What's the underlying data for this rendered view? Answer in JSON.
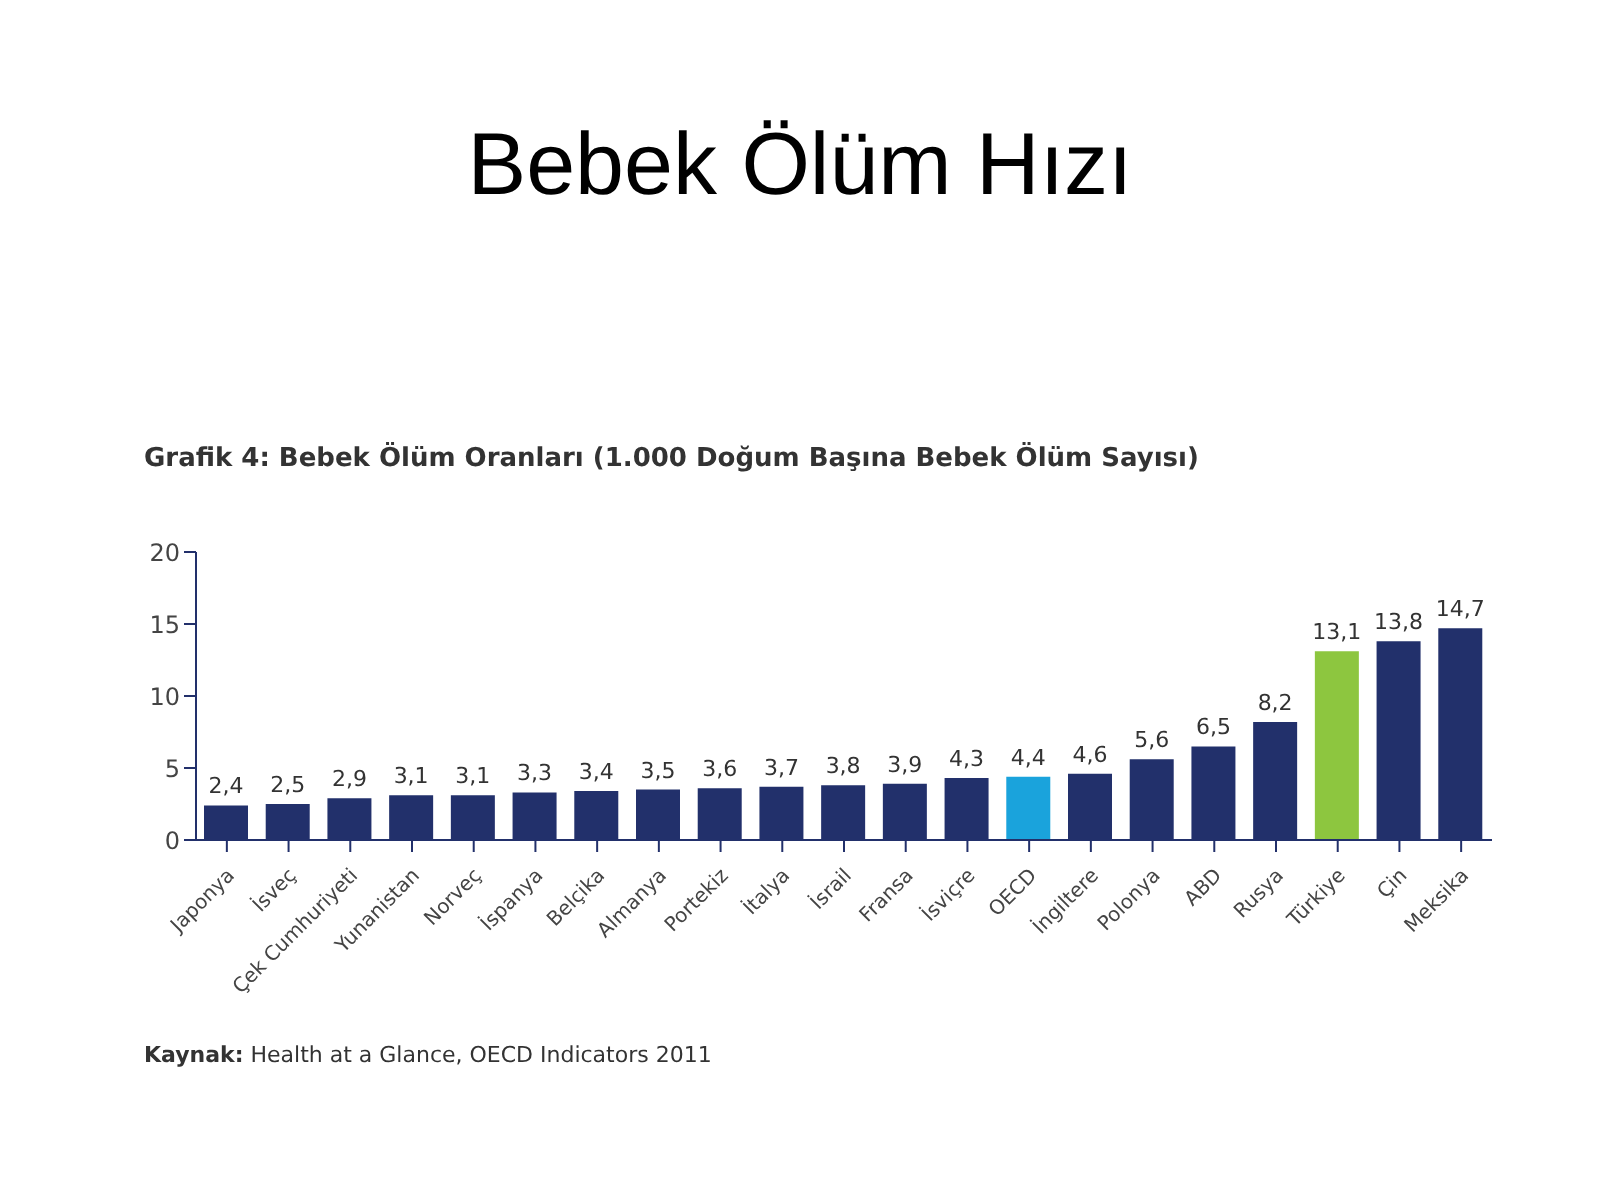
{
  "chart_data": {
    "type": "bar",
    "title": "Bebek Ölüm Hızı",
    "subtitle": "Grafik 4: Bebek Ölüm Oranları (1.000 Doğum Başına Bebek Ölüm Sayısı)",
    "annotations": [
      "Kaynak: Health at a Glance, OECD Indicators 2011"
    ],
    "categories": [
      "Japonya",
      "İsveç",
      "Çek Cumhuriyeti",
      "Yunanistan",
      "Norveç",
      "İspanya",
      "Belçika",
      "Almanya",
      "Portekiz",
      "İtalya",
      "İsrail",
      "Fransa",
      "İsviçre",
      "OECD",
      "İngiltere",
      "Polonya",
      "ABD",
      "Rusya",
      "Türkiye",
      "Çin",
      "Meksika"
    ],
    "values": [
      2.4,
      2.5,
      2.9,
      3.1,
      3.1,
      3.3,
      3.4,
      3.5,
      3.6,
      3.7,
      3.8,
      3.9,
      4.3,
      4.4,
      4.6,
      5.6,
      6.5,
      8.2,
      13.1,
      13.8,
      14.7
    ],
    "value_labels": [
      "2,4",
      "2,5",
      "2,9",
      "3,1",
      "3,1",
      "3,3",
      "3,4",
      "3,5",
      "3,6",
      "3,7",
      "3,8",
      "3,9",
      "4,3",
      "4,4",
      "4,6",
      "5,6",
      "6,5",
      "8,2",
      "13,1",
      "13,8",
      "14,7"
    ],
    "colors": [
      "#22306b",
      "#22306b",
      "#22306b",
      "#22306b",
      "#22306b",
      "#22306b",
      "#22306b",
      "#22306b",
      "#22306b",
      "#22306b",
      "#22306b",
      "#22306b",
      "#22306b",
      "#1aa3dc",
      "#22306b",
      "#22306b",
      "#22306b",
      "#22306b",
      "#8dc63f",
      "#22306b",
      "#22306b"
    ],
    "ylim": [
      0,
      20
    ],
    "yticks": [
      0,
      5,
      10,
      15,
      20
    ],
    "grid": false,
    "legend": false
  }
}
